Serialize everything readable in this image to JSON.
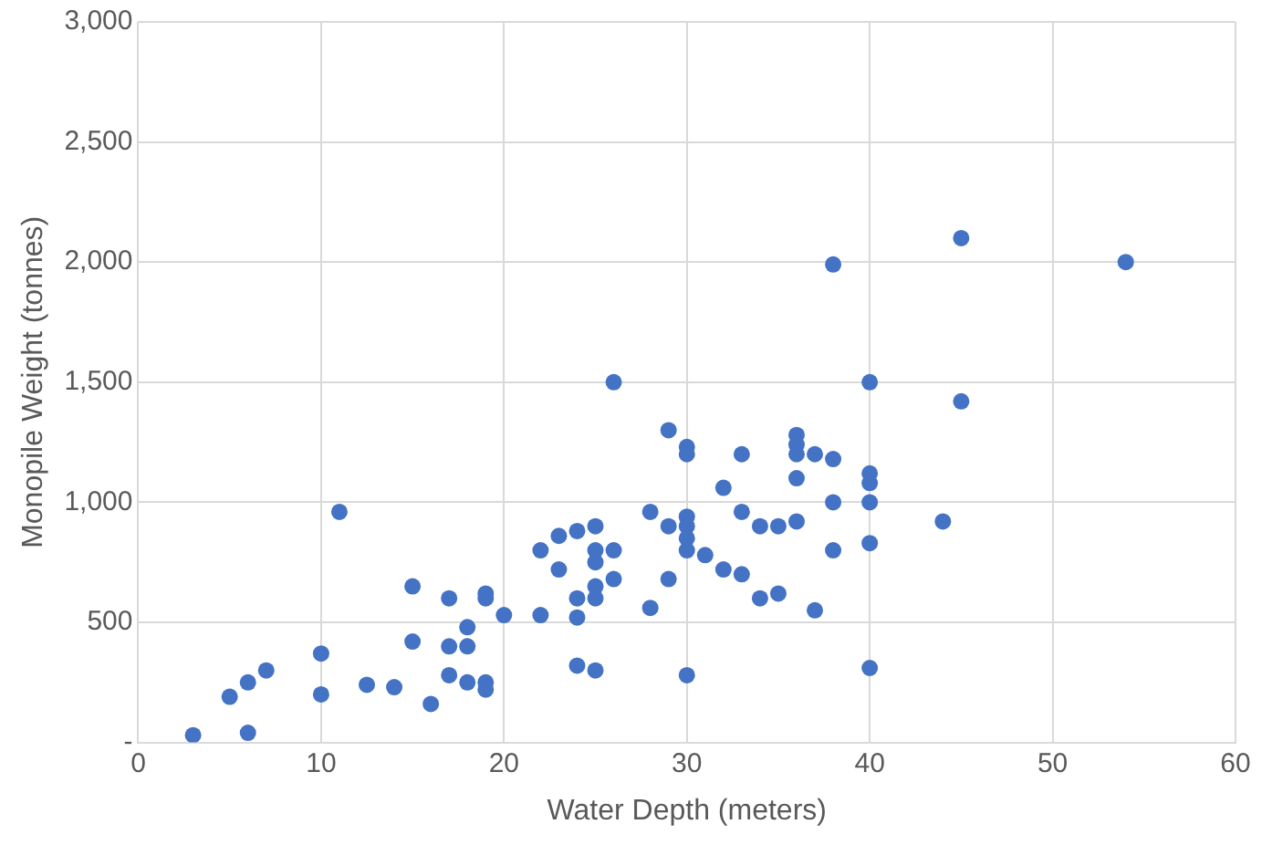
{
  "chart_data": {
    "type": "scatter",
    "xlabel": "Water Depth (meters)",
    "ylabel": "Monopile Weight (tonnes)",
    "xlim": [
      0,
      60
    ],
    "xticks": [
      0,
      10,
      20,
      30,
      40,
      50,
      60
    ],
    "ylim": [
      0,
      3000
    ],
    "yticks": [
      {
        "value": 0,
        "label": "-"
      },
      500,
      {
        "value": 1000,
        "label": "1,000"
      },
      {
        "value": 1500,
        "label": "1,500"
      },
      {
        "value": 2000,
        "label": "2,000"
      },
      {
        "value": 2500,
        "label": "2,500"
      },
      {
        "value": 3000,
        "label": "3,000"
      }
    ],
    "grid": true,
    "marker": "circle",
    "legend": false,
    "series": [
      {
        "color": "#4472c4",
        "x": [
          3,
          5,
          6,
          6,
          7,
          10,
          10,
          11,
          12.5,
          14,
          15,
          15,
          16,
          17,
          17,
          17,
          18,
          18,
          18,
          19,
          19,
          19,
          19,
          20,
          22,
          22,
          23,
          23,
          24,
          24,
          24,
          24,
          25,
          25,
          25,
          25,
          25,
          25,
          26,
          26,
          26,
          28,
          28,
          29,
          29,
          29,
          30,
          30,
          30,
          30,
          30,
          30,
          30,
          31,
          32,
          32,
          33,
          33,
          33,
          34,
          34,
          35,
          35,
          36,
          36,
          36,
          36,
          36,
          37,
          37,
          38,
          38,
          38,
          38,
          40,
          40,
          40,
          40,
          40,
          40,
          44,
          45,
          45,
          54
        ],
        "values": [
          30,
          190,
          250,
          40,
          300,
          370,
          200,
          960,
          240,
          230,
          650,
          420,
          160,
          600,
          280,
          400,
          250,
          400,
          480,
          620,
          600,
          250,
          220,
          530,
          800,
          530,
          860,
          720,
          880,
          600,
          520,
          320,
          900,
          800,
          750,
          650,
          600,
          300,
          1500,
          800,
          680,
          960,
          560,
          1300,
          900,
          680,
          1230,
          1200,
          940,
          900,
          850,
          800,
          280,
          780,
          1060,
          720,
          1200,
          960,
          700,
          900,
          600,
          900,
          620,
          1280,
          1240,
          1200,
          1100,
          920,
          1200,
          550,
          1990,
          1180,
          1000,
          800,
          1500,
          1120,
          1080,
          1000,
          830,
          310,
          920,
          2100,
          1420,
          2000
        ]
      }
    ]
  }
}
